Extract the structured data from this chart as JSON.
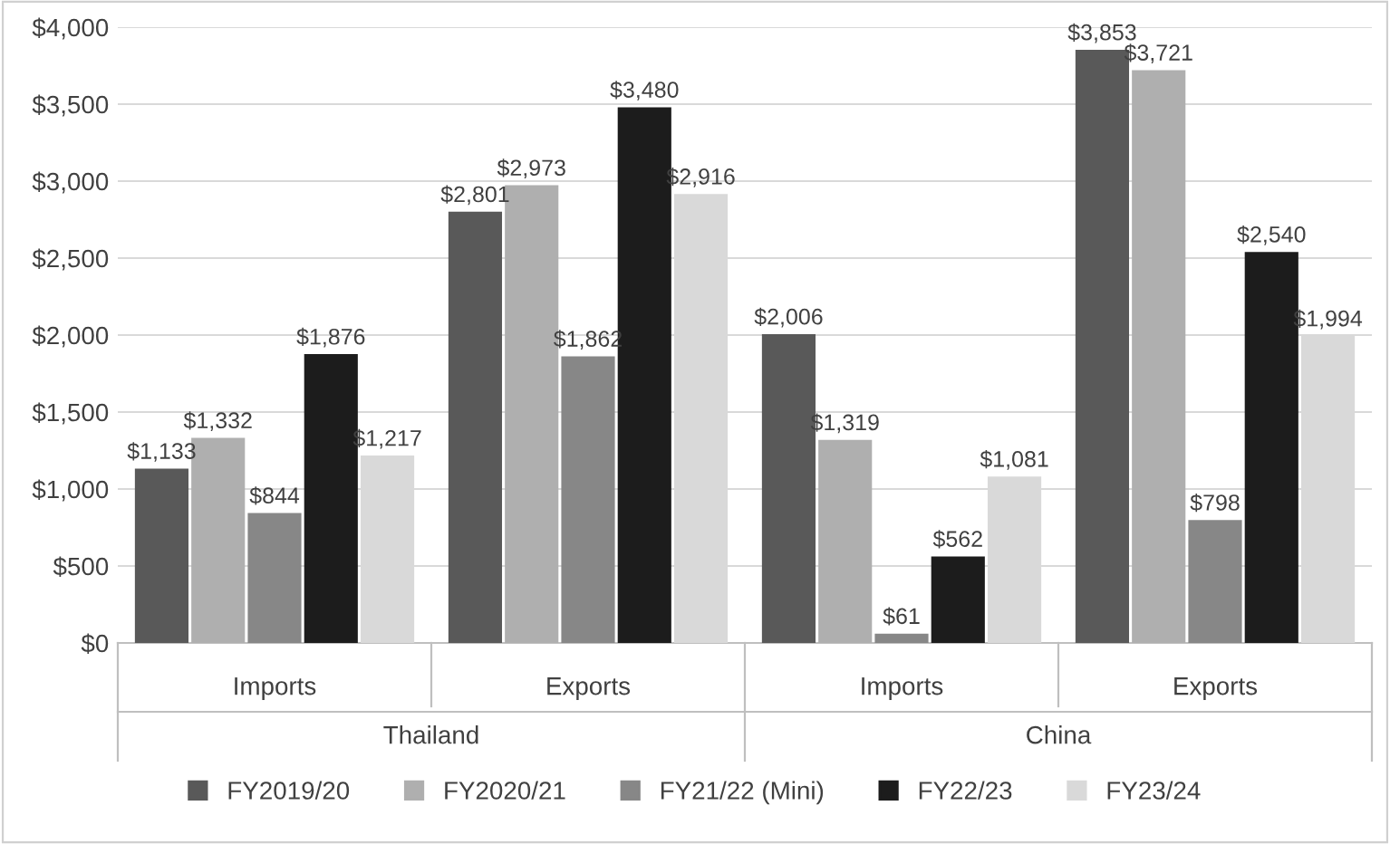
{
  "chart_data": {
    "type": "bar",
    "categories": [
      "Imports",
      "Exports",
      "Imports",
      "Exports"
    ],
    "series": [
      {
        "name": "FY2019/20",
        "color": "#595959",
        "values": [
          1133,
          2801,
          2006,
          3853
        ],
        "value_labels": [
          "$1,133",
          "$2,801",
          "$2,006",
          "$3,853"
        ]
      },
      {
        "name": "FY2020/21",
        "color": "#afafaf",
        "values": [
          1332,
          2973,
          1319,
          3721
        ],
        "value_labels": [
          "$1,332",
          "$2,973",
          "$1,319",
          "$3,721"
        ]
      },
      {
        "name": "FY21/22 (Mini)",
        "color": "#878787",
        "values": [
          844,
          1862,
          61,
          798
        ],
        "value_labels": [
          "$844",
          "$1,862",
          "$61",
          "$798"
        ]
      },
      {
        "name": "FY22/23",
        "color": "#1c1c1c",
        "values": [
          1876,
          3480,
          562,
          2540
        ],
        "value_labels": [
          "$1,876",
          "$3,480",
          "$562",
          "$2,540"
        ]
      },
      {
        "name": "FY23/24",
        "color": "#d9d9d9",
        "values": [
          1217,
          2916,
          1081,
          1994
        ],
        "value_labels": [
          "$1,217",
          "$2,916",
          "$1,081",
          "$1,994"
        ]
      }
    ],
    "annotations": [
      "Thailand",
      "China"
    ],
    "ylim": [
      0,
      4000
    ],
    "yticks": [
      {
        "value": 0,
        "label": "$0"
      },
      {
        "value": 500,
        "label": "$500"
      },
      {
        "value": 1000,
        "label": "$1,000"
      },
      {
        "value": 1500,
        "label": "$1,500"
      },
      {
        "value": 2000,
        "label": "$2,000"
      },
      {
        "value": 2500,
        "label": "$2,500"
      },
      {
        "value": 3000,
        "label": "$3,000"
      },
      {
        "value": 3500,
        "label": "$3,500"
      },
      {
        "value": 4000,
        "label": "$4,000"
      }
    ],
    "grid": "y",
    "legend": "bottom"
  }
}
